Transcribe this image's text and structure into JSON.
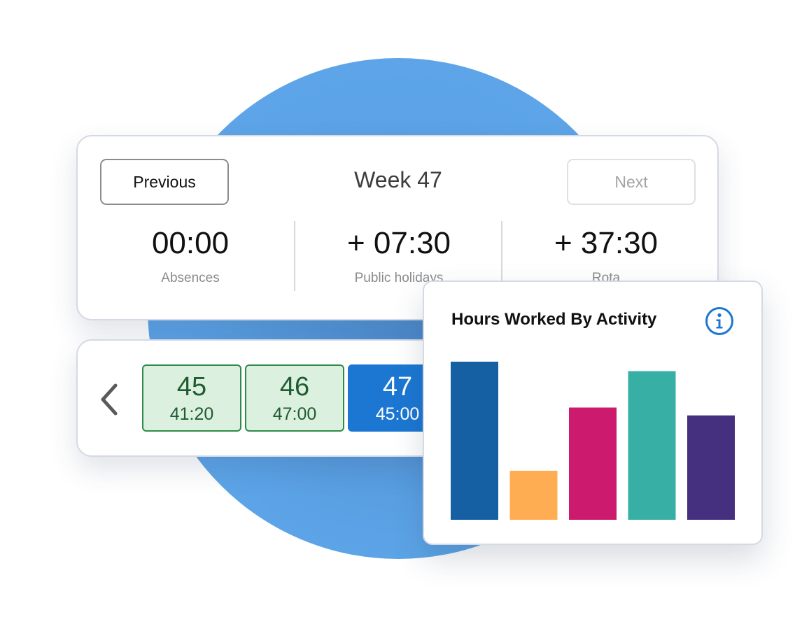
{
  "week_summary": {
    "previous_label": "Previous",
    "title": "Week 47",
    "next_label": "Next",
    "stats": [
      {
        "value": "00:00",
        "label": "Absences"
      },
      {
        "value": "+ 07:30",
        "label": "Public holidays"
      },
      {
        "value": "+ 37:30",
        "label": "Rota"
      }
    ]
  },
  "week_strip": {
    "weeks": [
      {
        "number": "45",
        "hours": "41:20",
        "status": "complete",
        "color": "#dcf0e0"
      },
      {
        "number": "46",
        "hours": "47:00",
        "status": "complete",
        "color": "#dcf0e0"
      },
      {
        "number": "47",
        "hours": "45:00",
        "status": "selected",
        "color": "#1b77d2"
      }
    ]
  },
  "chart_card": {
    "title": "Hours Worked By Activity"
  },
  "chart_data": {
    "type": "bar",
    "title": "Hours Worked By Activity",
    "xlabel": "",
    "ylabel": "",
    "ylim": [
      0,
      100
    ],
    "grid": false,
    "values": [
      100,
      31,
      71,
      94,
      66
    ],
    "colors": [
      "#1560a3",
      "#ffad52",
      "#cc1a6f",
      "#38afa4",
      "#45307f"
    ]
  },
  "colors": {
    "background_circle": "#5ba3e6",
    "accent_blue": "#1b77d2",
    "success_green": "#2e8b48"
  },
  "icons": {
    "back": "chevron-left-icon",
    "info": "info-icon"
  }
}
